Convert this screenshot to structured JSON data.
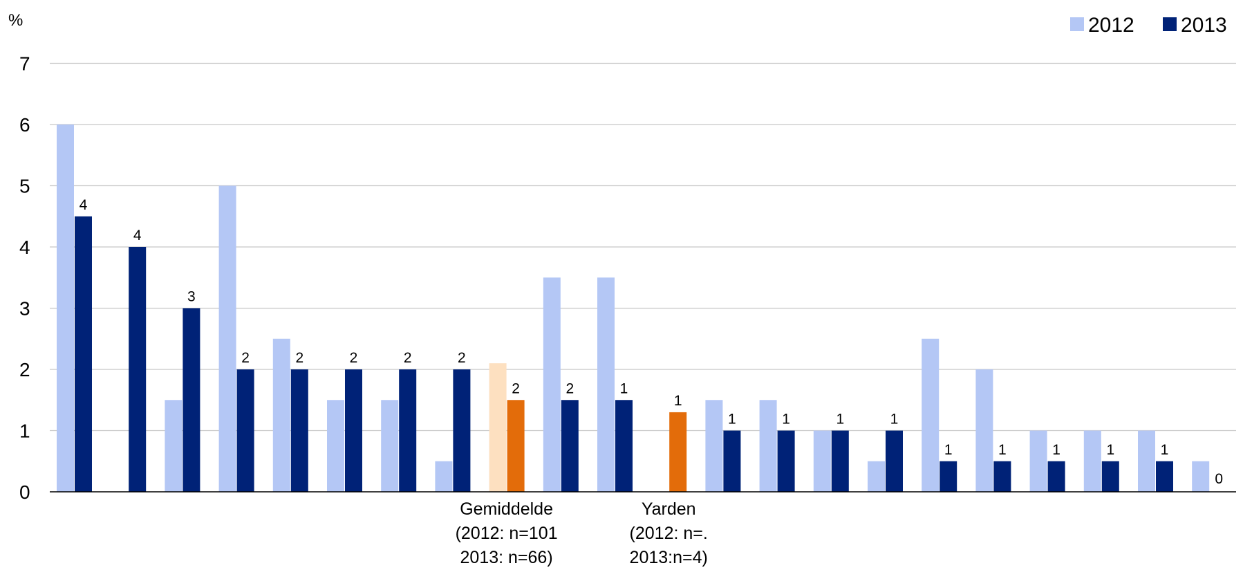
{
  "chart_data": {
    "type": "bar",
    "ylabel": "%",
    "ylim": [
      0,
      7
    ],
    "yticks": [
      "0",
      "1",
      "2",
      "3",
      "4",
      "5",
      "6",
      "7"
    ],
    "grid": true,
    "legend_position": "top-right",
    "series": [
      {
        "name": "2012",
        "color": "#b4c7f5",
        "values": [
          6.0,
          null,
          1.5,
          5.0,
          2.5,
          1.5,
          1.5,
          0.5,
          2.1,
          3.5,
          3.5,
          null,
          1.5,
          1.5,
          1.0,
          0.5,
          2.5,
          2.0,
          1.0,
          1.0,
          1.0,
          0.5
        ]
      },
      {
        "name": "2013",
        "color": "#002277",
        "values": [
          4.5,
          4.0,
          3.0,
          2.0,
          2.0,
          2.0,
          2.0,
          2.0,
          1.5,
          1.5,
          1.5,
          1.3,
          1.0,
          1.0,
          1.0,
          1.0,
          0.5,
          0.5,
          0.5,
          0.5,
          0.5,
          null
        ],
        "data_labels": [
          "4",
          "4",
          "3",
          "2",
          "2",
          "2",
          "2",
          "2",
          "2",
          "2",
          "1",
          "1",
          "1",
          "1",
          "1",
          "1",
          "1",
          "1",
          "1",
          "1",
          "1",
          ""
        ]
      }
    ],
    "category_labels": [
      "",
      "",
      "",
      "",
      "",
      "",
      "",
      "",
      "Gemiddelde\n(2012: n=101\n2013: n=66)",
      "",
      "",
      "Yarden\n(2012: n=.\n2013:n=4)",
      "",
      "",
      "",
      "",
      "",
      "",
      "",
      "",
      "",
      ""
    ],
    "highlight": {
      "indices": [
        8,
        11
      ],
      "color_2012": "#fde0c0",
      "color_2013": "#e36c0a"
    },
    "last_category_label": "0"
  }
}
